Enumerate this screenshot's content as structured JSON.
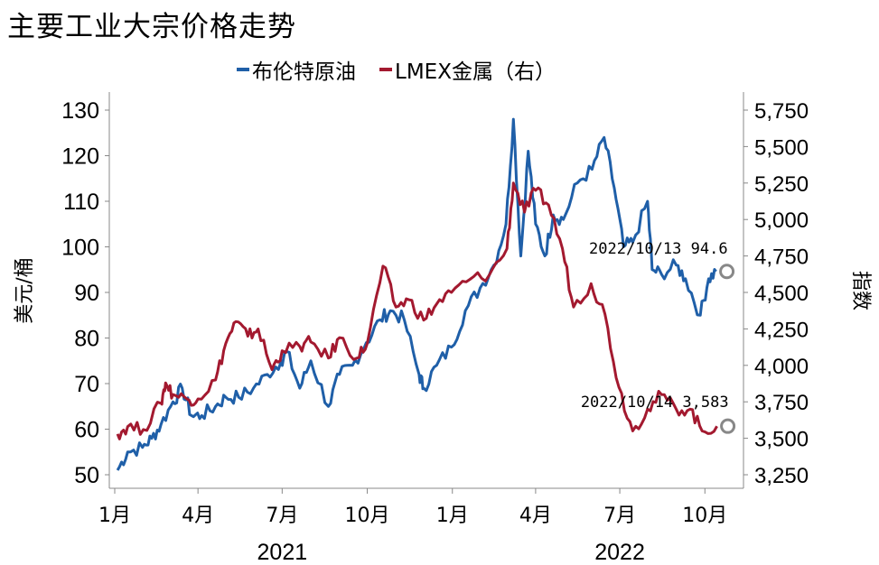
{
  "chart_data": {
    "type": "line",
    "title": "主要工业大宗价格走势",
    "ylabel_left": "美元/桶",
    "ylabel_right": "指数",
    "ylim_left": [
      50,
      130
    ],
    "ylim_right": [
      3250,
      5750
    ],
    "yticks_left": [
      "50",
      "60",
      "70",
      "80",
      "90",
      "100",
      "110",
      "120",
      "130"
    ],
    "yticks_right": [
      "3,250",
      "3,500",
      "3,750",
      "4,000",
      "4,250",
      "4,500",
      "4,750",
      "5,000",
      "5,250",
      "5,500",
      "5,750"
    ],
    "xticks": [
      {
        "label": "1月",
        "date": "2021-01-01"
      },
      {
        "label": "4月",
        "date": "2021-04-01"
      },
      {
        "label": "7月",
        "date": "2021-07-01"
      },
      {
        "label": "10月",
        "date": "2021-10-01"
      },
      {
        "label": "1月",
        "date": "2022-01-01"
      },
      {
        "label": "4月",
        "date": "2022-04-01"
      },
      {
        "label": "7月",
        "date": "2022-07-01"
      },
      {
        "label": "10月",
        "date": "2022-10-01"
      }
    ],
    "years": [
      {
        "label": "2021",
        "date": "2021-07-01"
      },
      {
        "label": "2022",
        "date": "2022-07-01"
      }
    ],
    "x_range": [
      "2021-01-01",
      "2022-10-31"
    ],
    "grid": false,
    "legend_position": "top-center",
    "series": [
      {
        "name": "布伦特原油",
        "axis": "left",
        "color": "#1f5fa8",
        "points": [
          [
            "2021-01-04",
            51
          ],
          [
            "2021-01-15",
            55
          ],
          [
            "2021-01-31",
            56
          ],
          [
            "2021-02-10",
            58
          ],
          [
            "2021-02-20",
            61
          ],
          [
            "2021-03-05",
            66
          ],
          [
            "2021-03-15",
            69
          ],
          [
            "2021-03-25",
            63
          ],
          [
            "2021-04-05",
            63
          ],
          [
            "2021-04-20",
            65
          ],
          [
            "2021-05-01",
            67
          ],
          [
            "2021-05-15",
            67
          ],
          [
            "2021-05-31",
            69
          ],
          [
            "2021-06-15",
            72
          ],
          [
            "2021-06-30",
            75
          ],
          [
            "2021-07-06",
            77
          ],
          [
            "2021-07-20",
            69
          ],
          [
            "2021-08-01",
            75
          ],
          [
            "2021-08-20",
            65
          ],
          [
            "2021-09-01",
            72
          ],
          [
            "2021-09-15",
            74
          ],
          [
            "2021-09-30",
            79
          ],
          [
            "2021-10-15",
            84
          ],
          [
            "2021-10-26",
            86
          ],
          [
            "2021-11-10",
            84
          ],
          [
            "2021-11-26",
            72
          ],
          [
            "2021-12-01",
            69
          ],
          [
            "2021-12-15",
            74
          ],
          [
            "2021-12-31",
            78
          ],
          [
            "2022-01-15",
            86
          ],
          [
            "2022-01-31",
            91
          ],
          [
            "2022-02-15",
            96
          ],
          [
            "2022-02-28",
            105
          ],
          [
            "2022-03-08",
            128
          ],
          [
            "2022-03-16",
            98
          ],
          [
            "2022-03-24",
            121
          ],
          [
            "2022-04-01",
            105
          ],
          [
            "2022-04-11",
            98
          ],
          [
            "2022-04-20",
            107
          ],
          [
            "2022-05-01",
            106
          ],
          [
            "2022-05-16",
            114
          ],
          [
            "2022-06-01",
            117
          ],
          [
            "2022-06-14",
            124
          ],
          [
            "2022-06-25",
            113
          ],
          [
            "2022-07-05",
            100
          ],
          [
            "2022-07-15",
            101
          ],
          [
            "2022-07-31",
            110
          ],
          [
            "2022-08-05",
            95
          ],
          [
            "2022-08-15",
            94
          ],
          [
            "2022-08-31",
            96
          ],
          [
            "2022-09-10",
            93
          ],
          [
            "2022-09-26",
            85
          ],
          [
            "2022-10-05",
            93
          ],
          [
            "2022-10-13",
            94.6
          ]
        ]
      },
      {
        "name": "LMEX金属（右）",
        "axis": "right",
        "color": "#a3192f",
        "points": [
          [
            "2021-01-04",
            3530
          ],
          [
            "2021-01-15",
            3580
          ],
          [
            "2021-02-01",
            3560
          ],
          [
            "2021-02-20",
            3740
          ],
          [
            "2021-02-25",
            3880
          ],
          [
            "2021-03-05",
            3800
          ],
          [
            "2021-03-20",
            3770
          ],
          [
            "2021-04-01",
            3770
          ],
          [
            "2021-04-20",
            3900
          ],
          [
            "2021-05-01",
            4150
          ],
          [
            "2021-05-12",
            4300
          ],
          [
            "2021-05-25",
            4200
          ],
          [
            "2021-06-05",
            4250
          ],
          [
            "2021-06-20",
            3970
          ],
          [
            "2021-07-01",
            4100
          ],
          [
            "2021-07-20",
            4130
          ],
          [
            "2021-08-01",
            4160
          ],
          [
            "2021-08-20",
            4050
          ],
          [
            "2021-09-01",
            4190
          ],
          [
            "2021-09-20",
            4050
          ],
          [
            "2021-10-01",
            4150
          ],
          [
            "2021-10-18",
            4680
          ],
          [
            "2021-11-01",
            4400
          ],
          [
            "2021-11-15",
            4450
          ],
          [
            "2021-12-01",
            4310
          ],
          [
            "2021-12-15",
            4420
          ],
          [
            "2021-12-31",
            4500
          ],
          [
            "2022-01-20",
            4590
          ],
          [
            "2022-02-10",
            4620
          ],
          [
            "2022-03-01",
            4800
          ],
          [
            "2022-03-08",
            5250
          ],
          [
            "2022-03-20",
            5050
          ],
          [
            "2022-04-01",
            5200
          ],
          [
            "2022-04-15",
            5100
          ],
          [
            "2022-04-30",
            4800
          ],
          [
            "2022-05-12",
            4400
          ],
          [
            "2022-05-31",
            4560
          ],
          [
            "2022-06-15",
            4350
          ],
          [
            "2022-06-30",
            3850
          ],
          [
            "2022-07-15",
            3550
          ],
          [
            "2022-07-31",
            3700
          ],
          [
            "2022-08-15",
            3800
          ],
          [
            "2022-08-31",
            3700
          ],
          [
            "2022-09-15",
            3700
          ],
          [
            "2022-09-28",
            3550
          ],
          [
            "2022-10-14",
            3583
          ]
        ]
      }
    ],
    "annotations": [
      {
        "series": 0,
        "date": "2022-10-13",
        "value": 94.6,
        "text": "2022/10/13 94.6"
      },
      {
        "series": 1,
        "date": "2022-10-14",
        "value": 3583,
        "text": "2022/10/14 3,583"
      }
    ]
  }
}
